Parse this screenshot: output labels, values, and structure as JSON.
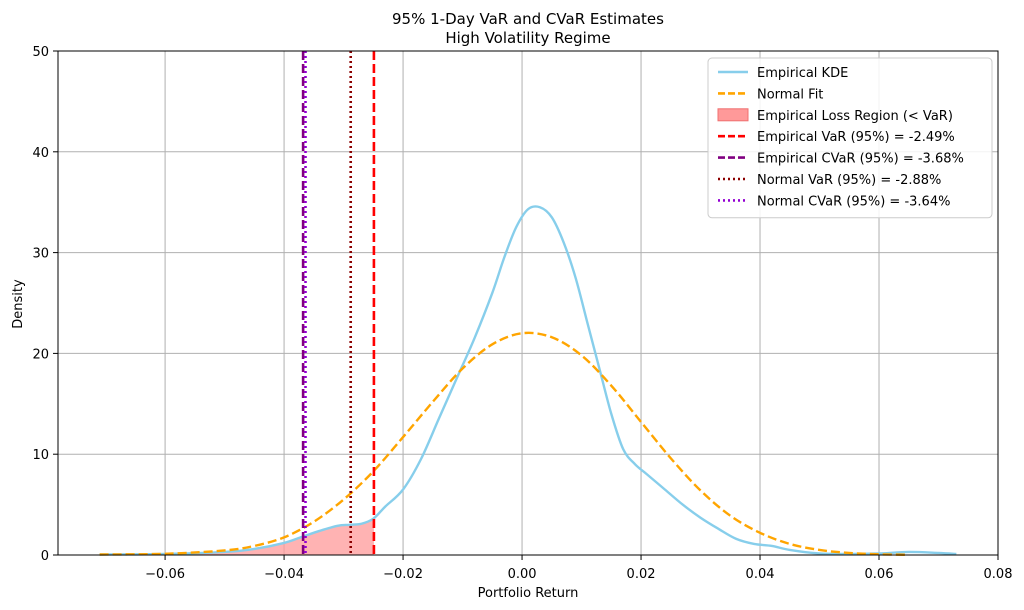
{
  "chart_data": {
    "type": "line",
    "title": "95% 1-Day VaR and CVaR Estimates",
    "subtitle": "High Volatility Regime",
    "xlabel": "Portfolio Return",
    "ylabel": "Density",
    "xlim": [
      -0.078,
      0.08
    ],
    "ylim": [
      0,
      50
    ],
    "x_ticks": [
      -0.06,
      -0.04,
      -0.02,
      0.0,
      0.02,
      0.04,
      0.06,
      0.08
    ],
    "x_tick_labels": [
      "−0.06",
      "−0.04",
      "−0.02",
      "0.00",
      "0.02",
      "0.04",
      "0.06",
      "0.08"
    ],
    "y_ticks": [
      0,
      10,
      20,
      30,
      40,
      50
    ],
    "y_tick_labels": [
      "0",
      "10",
      "20",
      "30",
      "40",
      "50"
    ],
    "grid": true,
    "legend_position": "top-right",
    "colors": {
      "empirical_kde": "#87ceeb",
      "normal_fit": "#ffa500",
      "loss_region": "#ff9999",
      "emp_var": "#ff0000",
      "emp_cvar": "#800080",
      "norm_var": "#8b0000",
      "norm_cvar": "#9400d3"
    },
    "series": [
      {
        "name": "Empirical KDE",
        "x": [
          -0.071,
          -0.06,
          -0.05,
          -0.045,
          -0.04,
          -0.037,
          -0.034,
          -0.031,
          -0.029,
          -0.027,
          -0.025,
          -0.023,
          -0.02,
          -0.017,
          -0.014,
          -0.011,
          -0.008,
          -0.005,
          -0.003,
          -0.001,
          0.001,
          0.003,
          0.005,
          0.007,
          0.009,
          0.011,
          0.013,
          0.015,
          0.017,
          0.019,
          0.021,
          0.024,
          0.027,
          0.03,
          0.033,
          0.036,
          0.039,
          0.042,
          0.045,
          0.05,
          0.055,
          0.06,
          0.065,
          0.07,
          0.073
        ],
        "y": [
          0.05,
          0.1,
          0.3,
          0.6,
          1.2,
          1.8,
          2.4,
          2.9,
          3.0,
          3.1,
          3.6,
          4.8,
          6.5,
          9.5,
          13.5,
          17.5,
          21.5,
          26,
          29.5,
          32.5,
          34.3,
          34.5,
          33.5,
          31,
          27.5,
          23,
          18.5,
          14,
          10.5,
          9,
          8,
          6.5,
          5,
          3.7,
          2.6,
          1.6,
          1.1,
          0.9,
          0.5,
          0.15,
          0.1,
          0.15,
          0.3,
          0.2,
          0.1
        ]
      },
      {
        "name": "Normal Fit",
        "x": [
          -0.071,
          -0.06,
          -0.05,
          -0.045,
          -0.04,
          -0.035,
          -0.03,
          -0.025,
          -0.02,
          -0.015,
          -0.01,
          -0.005,
          0.0,
          0.005,
          0.01,
          0.015,
          0.02,
          0.025,
          0.03,
          0.035,
          0.04,
          0.045,
          0.05,
          0.055,
          0.06,
          0.065
        ],
        "y": [
          0.05,
          0.12,
          0.45,
          0.9,
          1.75,
          3.3,
          5.5,
          8.3,
          11.7,
          15.2,
          18.5,
          20.9,
          22.0,
          21.6,
          19.8,
          16.8,
          13.2,
          9.6,
          6.4,
          3.9,
          2.2,
          1.1,
          0.5,
          0.2,
          0.07,
          0.02
        ]
      }
    ],
    "legend": [
      {
        "label": "Empirical KDE",
        "style": "solid",
        "color": "#87ceeb"
      },
      {
        "label": "Normal Fit",
        "style": "dashed",
        "color": "#ffa500"
      },
      {
        "label": "Empirical Loss Region (< VaR)",
        "style": "patch",
        "color": "#ff9999"
      },
      {
        "label": "Empirical VaR (95%) = -2.49%",
        "style": "dashed",
        "color": "#ff0000"
      },
      {
        "label": "Empirical CVaR (95%) = -3.68%",
        "style": "dashed",
        "color": "#800080"
      },
      {
        "label": "Normal VaR (95%) = -2.88%",
        "style": "dotted",
        "color": "#8b0000"
      },
      {
        "label": "Normal CVaR (95%) = -3.64%",
        "style": "dotted",
        "color": "#9400d3"
      }
    ],
    "vlines": [
      {
        "x": -0.0249,
        "color": "#ff0000",
        "style": "dashed"
      },
      {
        "x": -0.0368,
        "color": "#800080",
        "style": "dashed"
      },
      {
        "x": -0.0288,
        "color": "#8b0000",
        "style": "dotted"
      },
      {
        "x": -0.0364,
        "color": "#9400d3",
        "style": "dotted"
      }
    ],
    "loss_region_max_x": -0.0249
  }
}
